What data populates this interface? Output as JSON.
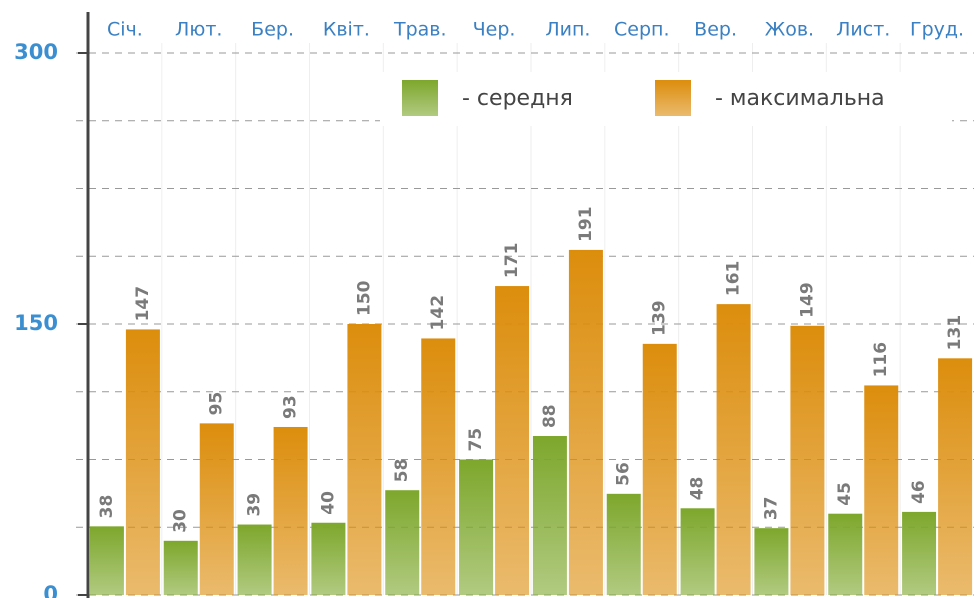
{
  "chart_data": {
    "type": "bar",
    "categories": [
      "Січ.",
      "Лют.",
      "Бер.",
      "Квіт.",
      "Трав.",
      "Чер.",
      "Лип.",
      "Серп.",
      "Вер.",
      "Жов.",
      "Лист.",
      "Груд."
    ],
    "series": [
      {
        "name": "- середня",
        "color": "#7da72c",
        "values": [
          38,
          30,
          39,
          40,
          58,
          75,
          88,
          56,
          48,
          37,
          45,
          46
        ]
      },
      {
        "name": "- максимальна",
        "color": "#dc8d0c",
        "values": [
          147,
          95,
          93,
          150,
          142,
          171,
          191,
          139,
          161,
          149,
          116,
          131
        ]
      }
    ],
    "ylim": [
      0,
      300
    ],
    "yticks": [
      0,
      150,
      300
    ],
    "minor_yticks": [
      37.5,
      75,
      112.5,
      187.5,
      225,
      262.5
    ],
    "grid": true,
    "legend": "top-right"
  }
}
